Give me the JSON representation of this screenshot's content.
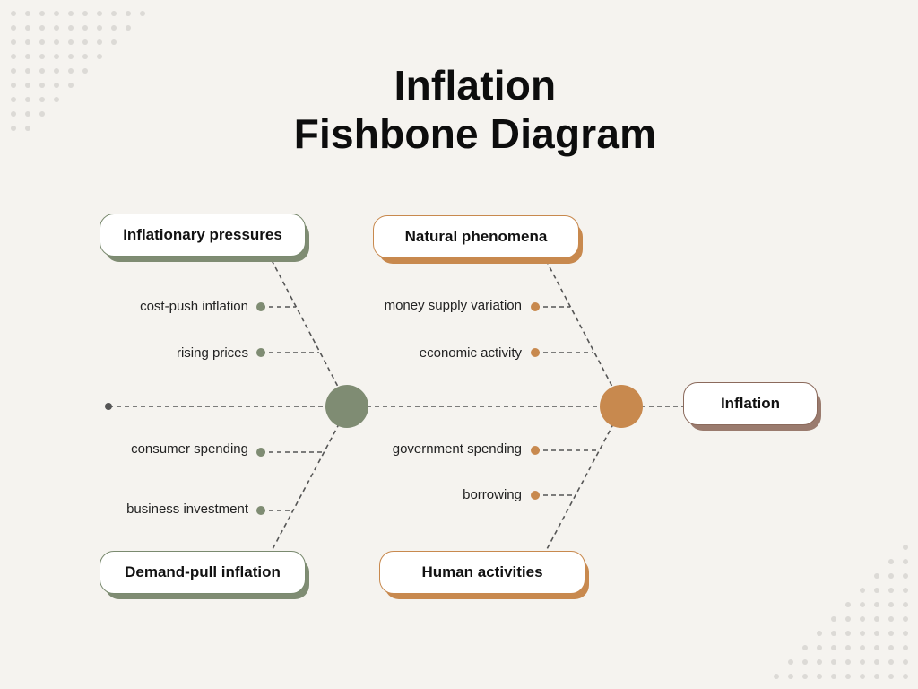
{
  "title": {
    "line1": "Inflation",
    "line2": "Fishbone Diagram"
  },
  "effect": {
    "label": "Inflation"
  },
  "categories": [
    {
      "label": "Inflationary pressures",
      "causes": [
        "cost-push inflation",
        "rising prices"
      ]
    },
    {
      "label": "Demand-pull inflation",
      "causes": [
        "consumer spending",
        "business investment"
      ]
    },
    {
      "label": "Natural phenomena",
      "causes": [
        "money supply variation",
        "economic activity"
      ]
    },
    {
      "label": "Human activities",
      "causes": [
        "government spending",
        "borrowing"
      ]
    }
  ],
  "colors": {
    "background": "#f5f3ef",
    "green": "#7f8c73",
    "orange": "#c8894e",
    "brown": "#9a7b6e",
    "line": "#555555"
  }
}
